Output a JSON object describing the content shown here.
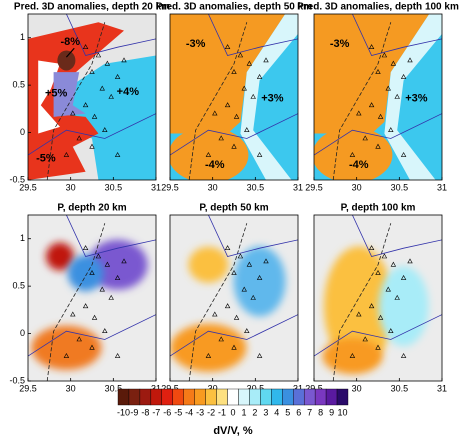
{
  "chart_data": [
    {
      "type": "map",
      "title": "Pred. 3D anomalies, depth 20 km",
      "xlim": [
        29.5,
        31
      ],
      "ylim": [
        -0.5,
        1.25
      ],
      "xticks": [
        29.5,
        30,
        30.5,
        31
      ],
      "yticks": [
        -0.5,
        0,
        0.5,
        1
      ],
      "annotations": [
        "-8%",
        "+5%",
        "+4%",
        "-5%"
      ]
    },
    {
      "type": "map",
      "title": "Pred. 3D anomalies, depth 50 km",
      "xlim": [
        29.5,
        31
      ],
      "ylim": [
        -0.5,
        1.25
      ],
      "xticks": [
        29.5,
        30,
        30.5,
        31
      ],
      "annotations": [
        "-3%",
        "+3%",
        "-4%"
      ]
    },
    {
      "type": "map",
      "title": "Pred. 3D anomalies, depth 100 km",
      "xlim": [
        29.5,
        31
      ],
      "ylim": [
        -0.5,
        1.25
      ],
      "xticks": [
        29.5,
        30,
        30.5,
        31
      ],
      "annotations": [
        "-3%",
        "+3%",
        "-4%"
      ]
    },
    {
      "type": "map",
      "title": "P, depth 20 km",
      "xlim": [
        29.5,
        31
      ],
      "ylim": [
        -0.5,
        1.25
      ],
      "xticks": [
        29.5,
        30,
        30.5,
        31
      ],
      "yticks": [
        -0.5,
        0,
        0.5,
        1
      ]
    },
    {
      "type": "map",
      "title": "P, depth 50 km",
      "xlim": [
        29.5,
        31
      ],
      "ylim": [
        -0.5,
        1.25
      ],
      "xticks": [
        29.5,
        30,
        30.5,
        31
      ]
    },
    {
      "type": "map",
      "title": "P, depth 100 km",
      "xlim": [
        29.5,
        31
      ],
      "ylim": [
        -0.5,
        1.25
      ],
      "xticks": [
        29.5,
        30,
        30.5,
        31
      ]
    }
  ],
  "colorbar": {
    "ticks": [
      -10,
      -9,
      -8,
      -7,
      -6,
      -5,
      -4,
      -3,
      -2,
      -1,
      0,
      1,
      2,
      3,
      4,
      5,
      6,
      7,
      8,
      9,
      10
    ],
    "colors": [
      "#5a1a0a",
      "#7a2010",
      "#9c1a10",
      "#c0180c",
      "#e02010",
      "#f04a10",
      "#f57a18",
      "#f89a20",
      "#fbc040",
      "#fde080",
      "#ffffff",
      "#d8f6fb",
      "#a8ecf8",
      "#60d8f0",
      "#30b8ec",
      "#3a90e0",
      "#5a70d8",
      "#7a58d0",
      "#7a38c0",
      "#5a1aa0",
      "#2a0a6a"
    ],
    "label": "dV/V, %"
  }
}
